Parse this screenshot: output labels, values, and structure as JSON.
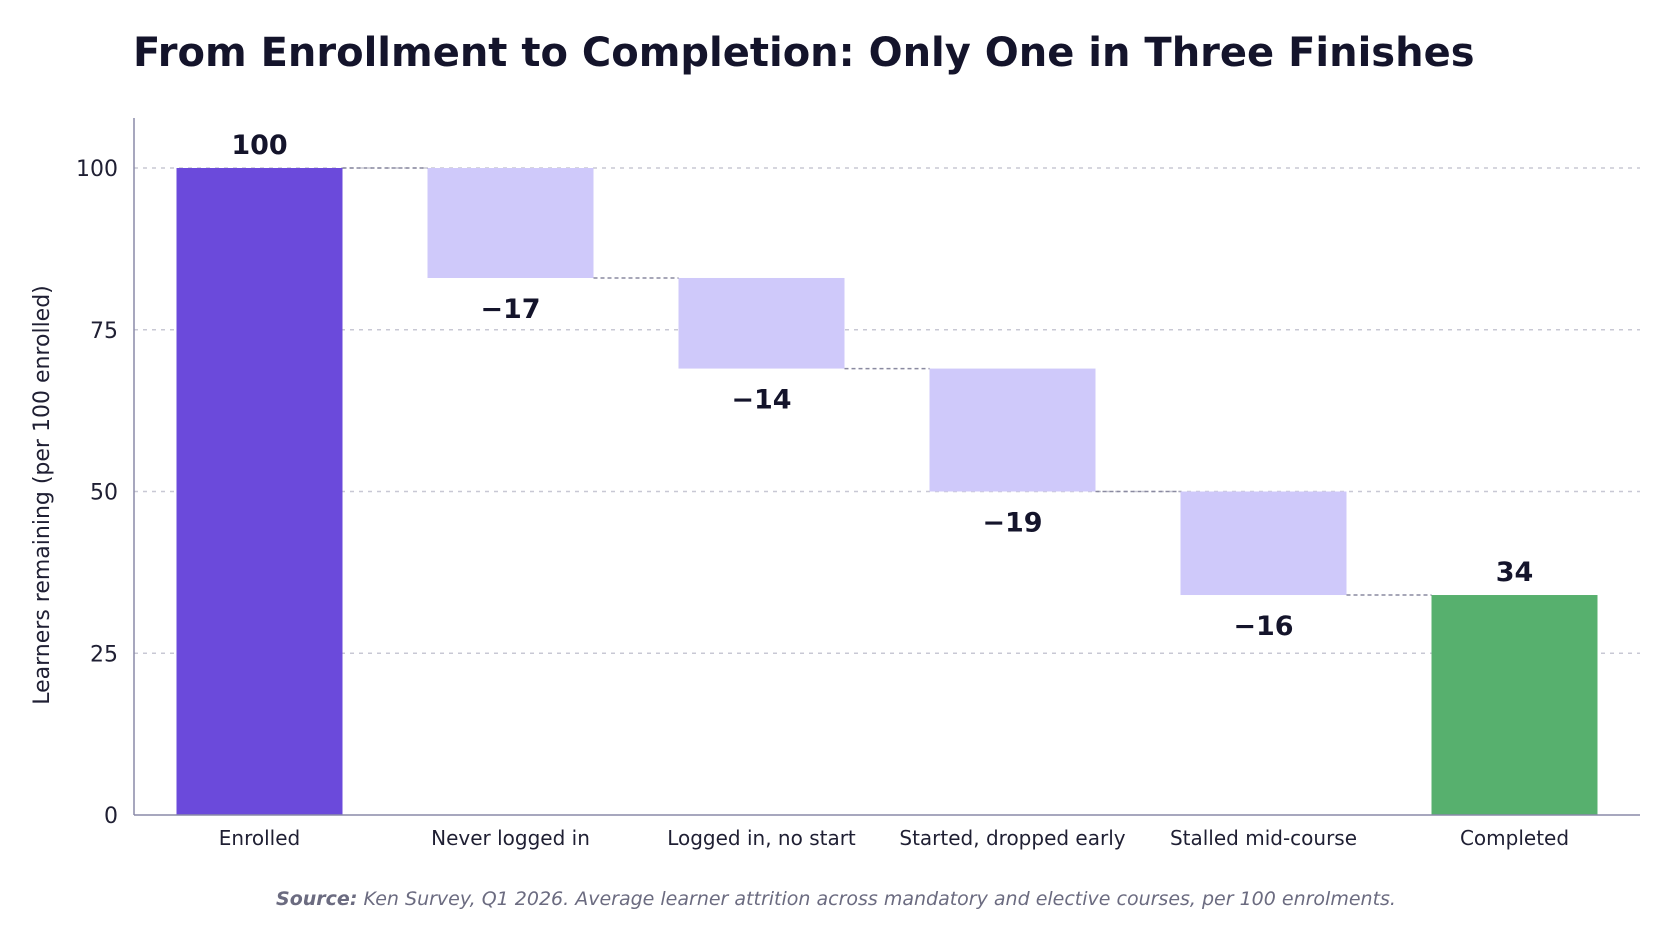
{
  "chart_data": {
    "type": "waterfall",
    "title": "From Enrollment to Completion: Only One in Three Finishes",
    "ylabel": "Learners remaining (per 100 enrolled)",
    "xlabel": "",
    "ylim": [
      0,
      105
    ],
    "yticks": [
      0,
      25,
      50,
      75,
      100
    ],
    "grid": true,
    "categories": [
      "Enrolled",
      "Never logged in",
      "Logged in, no start",
      "Started, dropped early",
      "Stalled mid-course",
      "Completed"
    ],
    "values": [
      100,
      -17,
      -14,
      -19,
      -16,
      34
    ],
    "kinds": [
      "total",
      "delta",
      "delta",
      "delta",
      "delta",
      "total"
    ],
    "value_labels": [
      "100",
      "−17",
      "−14",
      "−19",
      "−16",
      "34"
    ],
    "colors": {
      "start": "#6b4adb",
      "decrease": "#cfc9fa",
      "end": "#57b06e",
      "connector": "#8a8aa0",
      "grid": "#c8c8d4",
      "axis": "#8a8aa8"
    }
  },
  "source": {
    "label": "Source:",
    "text": " Ken Survey, Q1 2026. Average learner attrition across mandatory and elective courses, per 100 enrolments."
  }
}
